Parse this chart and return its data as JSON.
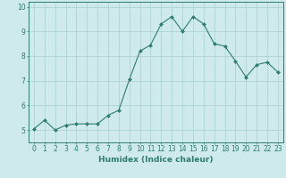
{
  "x": [
    0,
    1,
    2,
    3,
    4,
    5,
    6,
    7,
    8,
    9,
    10,
    11,
    12,
    13,
    14,
    15,
    16,
    17,
    18,
    19,
    20,
    21,
    22,
    23
  ],
  "y": [
    5.05,
    5.4,
    5.0,
    5.2,
    5.25,
    5.25,
    5.25,
    5.6,
    5.8,
    7.05,
    8.2,
    8.45,
    9.3,
    9.6,
    9.0,
    9.6,
    9.3,
    8.5,
    8.4,
    7.8,
    7.15,
    7.65,
    7.75,
    7.35
  ],
  "line_color": "#2e7d6e",
  "marker": "D",
  "marker_size": 2.0,
  "bg_color": "#ceeaea",
  "grid_color": "#aacfcf",
  "axis_color": "#2e7d6e",
  "xlabel": "Humidex (Indice chaleur)",
  "xlim": [
    -0.5,
    23.5
  ],
  "ylim": [
    4.5,
    10.2
  ],
  "yticks": [
    5,
    6,
    7,
    8,
    9,
    10
  ],
  "xticks": [
    0,
    1,
    2,
    3,
    4,
    5,
    6,
    7,
    8,
    9,
    10,
    11,
    12,
    13,
    14,
    15,
    16,
    17,
    18,
    19,
    20,
    21,
    22,
    23
  ],
  "tick_fontsize": 5.5,
  "xlabel_fontsize": 6.5
}
